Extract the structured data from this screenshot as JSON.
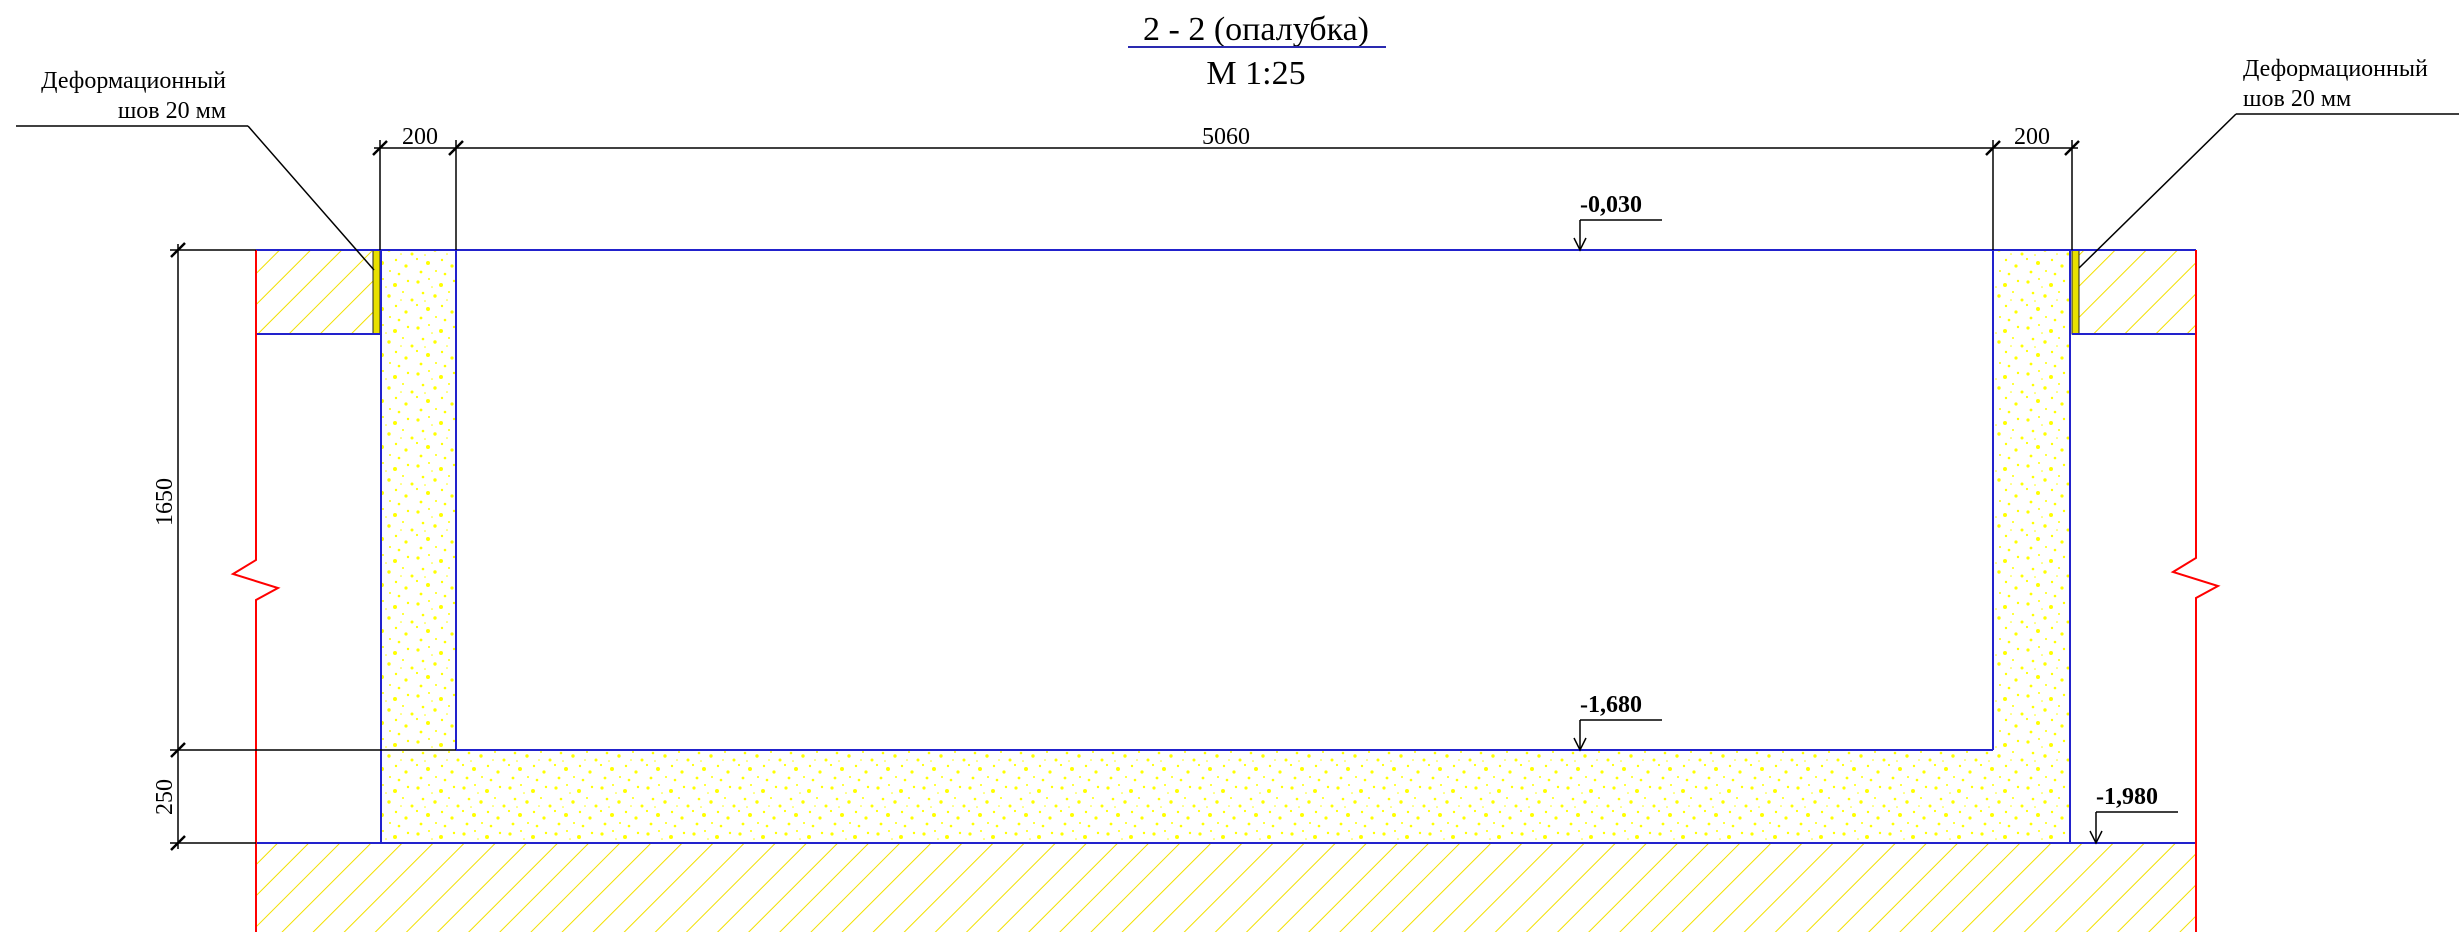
{
  "title": {
    "section": "2 - 2 (опалубка)",
    "scale": "М 1:25"
  },
  "callouts": {
    "left": {
      "line1": "Деформационный",
      "line2": "шов 20 мм"
    },
    "right": {
      "line1": "Деформационный",
      "line2": "шов 20 мм"
    }
  },
  "dimensions": {
    "wall_left": "200",
    "span": "5060",
    "wall_right": "200",
    "height_wall": "1650",
    "height_slab": "250"
  },
  "levels": {
    "top": "-0,030",
    "inner_bottom": "-1,680",
    "outer_bottom": "-1,980"
  },
  "colors": {
    "outline": "#2222cc",
    "break_line": "#ff0000",
    "hatch": "#f2e000",
    "concrete": "#ffff00",
    "seam": "#e8e000",
    "dimension": "#000000"
  }
}
